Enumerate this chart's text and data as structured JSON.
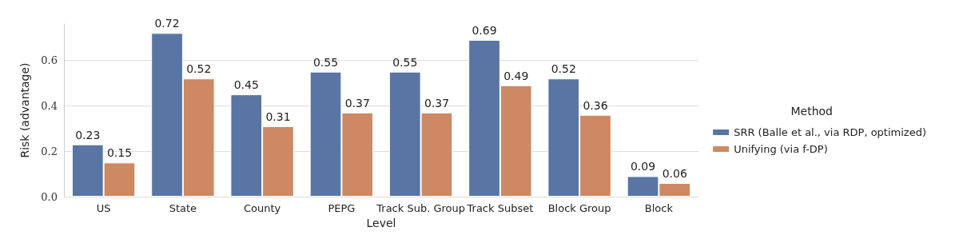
{
  "chart_data": {
    "type": "bar",
    "xlabel": "Level",
    "ylabel": "Risk (advantage)",
    "legend_title": "Method",
    "categories": [
      "US",
      "State",
      "County",
      "PEPG",
      "Track Sub. Group",
      "Track Subset",
      "Block Group",
      "Block"
    ],
    "series": [
      {
        "name": "SRR (Balle et al., via RDP, optimized)",
        "color": "#5975a4",
        "values": [
          0.23,
          0.72,
          0.45,
          0.55,
          0.55,
          0.69,
          0.52,
          0.09
        ]
      },
      {
        "name": "Unifying (via f-DP)",
        "color": "#cc8963",
        "values": [
          0.15,
          0.52,
          0.31,
          0.37,
          0.37,
          0.49,
          0.36,
          0.06
        ]
      }
    ],
    "ylim": [
      0,
      0.76
    ],
    "yticks": [
      {
        "value": 0,
        "label": "0.0"
      },
      0.2,
      0.4,
      0.6
    ],
    "grid": "y",
    "legend": "right",
    "data_labels": true
  }
}
